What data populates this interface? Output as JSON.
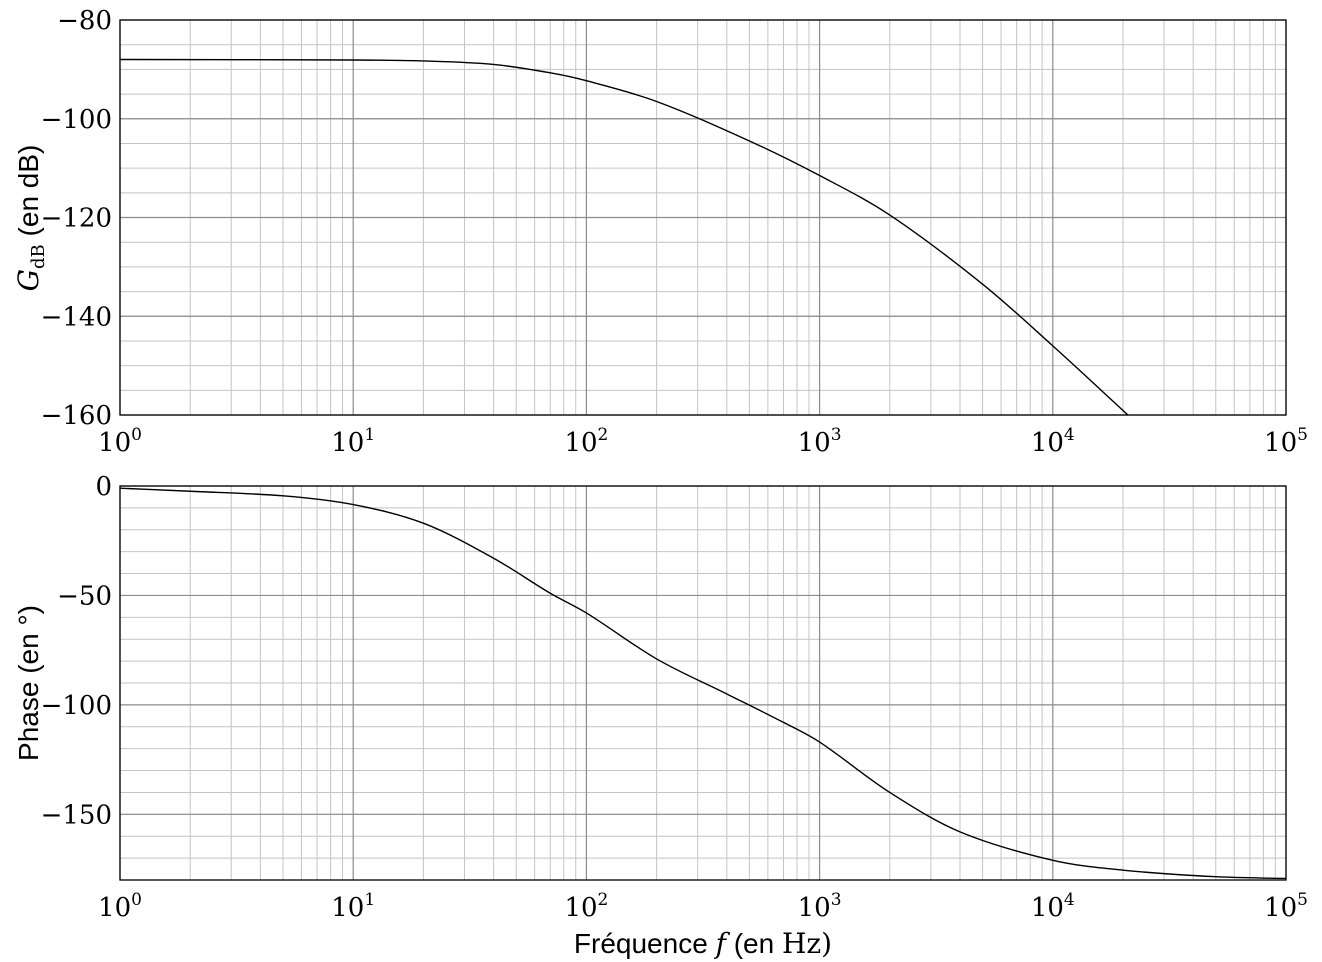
{
  "chart_data": [
    {
      "type": "line",
      "xscale": "log",
      "xlim": [
        1,
        100000
      ],
      "ylim": [
        -160,
        -80
      ],
      "xticks": [
        1,
        10,
        100,
        1000,
        10000,
        100000
      ],
      "xtick_labels": [
        {
          "base": "10",
          "exp": "0"
        },
        {
          "base": "10",
          "exp": "1"
        },
        {
          "base": "10",
          "exp": "2"
        },
        {
          "base": "10",
          "exp": "3"
        },
        {
          "base": "10",
          "exp": "4"
        },
        {
          "base": "10",
          "exp": "5"
        }
      ],
      "yticks": [
        -80,
        -100,
        -120,
        -140,
        -160
      ],
      "ytick_labels": [
        "−80",
        "−100",
        "−120",
        "−140",
        "−160"
      ],
      "ylabel": {
        "symbol": "G",
        "subscript": "dB",
        "unit": "(en dB)"
      },
      "grid": true,
      "series": [
        {
          "x": [
            1,
            10,
            20,
            40,
            70,
            100,
            200,
            500,
            1000,
            2000,
            5000,
            10000,
            21000
          ],
          "y": [
            -88,
            -88.1,
            -88.3,
            -89,
            -90.7,
            -92.3,
            -96.5,
            -104.5,
            -111.5,
            -119.5,
            -133.5,
            -146,
            -160
          ]
        }
      ]
    },
    {
      "type": "line",
      "xscale": "log",
      "xlim": [
        1,
        100000
      ],
      "ylim": [
        -180,
        0
      ],
      "xticks": [
        1,
        10,
        100,
        1000,
        10000,
        100000
      ],
      "xtick_labels": [
        {
          "base": "10",
          "exp": "0"
        },
        {
          "base": "10",
          "exp": "1"
        },
        {
          "base": "10",
          "exp": "2"
        },
        {
          "base": "10",
          "exp": "3"
        },
        {
          "base": "10",
          "exp": "4"
        },
        {
          "base": "10",
          "exp": "5"
        }
      ],
      "yticks": [
        0,
        -50,
        -100,
        -150
      ],
      "ytick_labels": [
        "0",
        "−50",
        "−100",
        "−150"
      ],
      "ylabel": {
        "text": "Phase (en °)"
      },
      "xlabel": {
        "word": "Fréquence",
        "symbol": "f",
        "open": "(en",
        "unit": "Hz",
        "close": ")"
      },
      "grid": true,
      "series": [
        {
          "x": [
            1,
            2,
            5,
            10,
            20,
            40,
            70,
            100,
            200,
            400,
            700,
            1000,
            2000,
            4000,
            10000,
            20000,
            50000,
            100000
          ],
          "y": [
            -1,
            -2.4,
            -4.5,
            -8.5,
            -17,
            -33,
            -49,
            -58,
            -79,
            -95,
            -108,
            -117,
            -140,
            -158,
            -171,
            -175.5,
            -178.5,
            -179.3
          ]
        }
      ]
    }
  ]
}
